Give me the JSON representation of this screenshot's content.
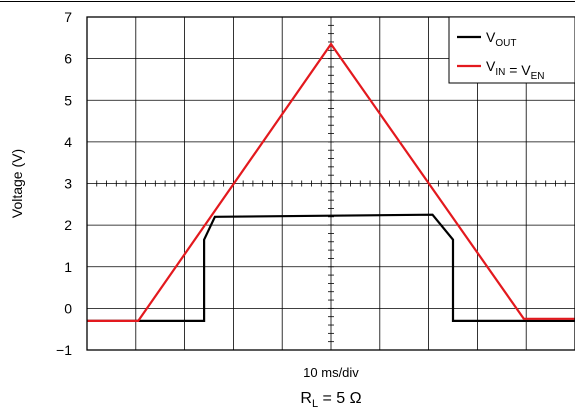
{
  "chart_data": {
    "type": "line",
    "title": "",
    "xlabel": "10 ms/div",
    "ylabel": "Voltage (V)",
    "condition": {
      "main": "R",
      "sub": "L",
      "rest": " = 5 Ω"
    },
    "ylim": [
      -1,
      7
    ],
    "y_ticks": [
      "−1",
      "0",
      "1",
      "2",
      "3",
      "4",
      "5",
      "6",
      "7"
    ],
    "x_divisions": 10,
    "xlim": [
      0,
      10
    ],
    "x_unit_note": "x in divisions (10 ms/div)",
    "grid": true,
    "legend_position": "top-right",
    "series": [
      {
        "name": "V_OUT",
        "label_parts": [
          {
            "t": "V",
            "sub": "OUT"
          }
        ],
        "color": "#000000",
        "x": [
          0,
          1.18,
          2.4,
          2.4,
          2.62,
          7.08,
          7.5,
          7.5,
          10
        ],
        "y": [
          -0.3,
          -0.3,
          -0.3,
          1.65,
          2.2,
          2.25,
          1.65,
          -0.3,
          -0.3
        ]
      },
      {
        "name": "V_IN = V_EN",
        "label_parts": [
          {
            "t": "V",
            "sub": "IN"
          },
          {
            "t": " = V",
            "sub": "EN"
          }
        ],
        "color": "#e3191e",
        "x": [
          0,
          1.05,
          5.0,
          8.95,
          10
        ],
        "y": [
          -0.3,
          -0.3,
          6.35,
          -0.25,
          -0.25
        ]
      }
    ]
  }
}
